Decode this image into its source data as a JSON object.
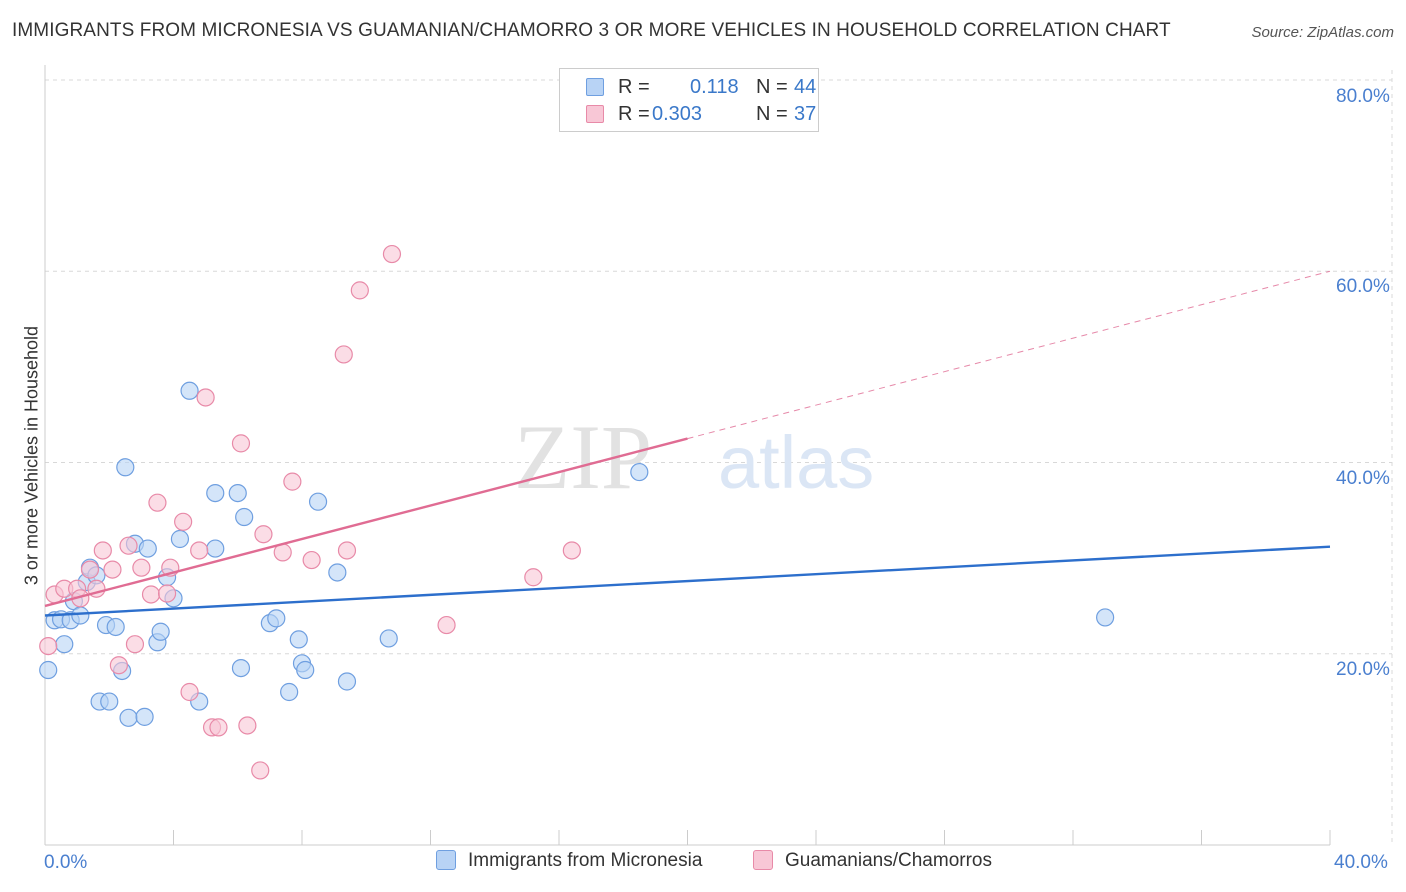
{
  "title": "IMMIGRANTS FROM MICRONESIA VS GUAMANIAN/CHAMORRO 3 OR MORE VEHICLES IN HOUSEHOLD CORRELATION CHART",
  "source": "Source: ZipAtlas.com",
  "watermark": {
    "zip": "ZIP",
    "atlas": "atlas"
  },
  "legend": {
    "rows": [
      {
        "r_label": "R =",
        "r_value": "0.118",
        "n_label": "N =",
        "n_value": "44",
        "color": "#b8d3f5",
        "border": "#6f9fe0"
      },
      {
        "r_label": "R =",
        "r_value": "0.303",
        "n_label": "N =",
        "n_value": "37",
        "color": "#f8c7d6",
        "border": "#e88aa8"
      }
    ]
  },
  "bottom_legend": [
    {
      "label": "Immigrants from Micronesia",
      "color": "#b8d3f5",
      "border": "#6f9fe0"
    },
    {
      "label": "Guamanians/Chamorros",
      "color": "#f8c7d6",
      "border": "#e88aa8"
    }
  ],
  "chart_data": {
    "type": "scatter",
    "title": "IMMIGRANTS FROM MICRONESIA VS GUAMANIAN/CHAMORRO 3 OR MORE VEHICLES IN HOUSEHOLD CORRELATION CHART",
    "xlabel": "",
    "ylabel": "3 or more Vehicles in Household",
    "xlim": [
      0,
      40
    ],
    "ylim": [
      0,
      80
    ],
    "x_tick_labels": [
      "0.0%",
      "40.0%"
    ],
    "y_ticks": [
      20,
      40,
      60,
      80
    ],
    "y_tick_labels": [
      "20.0%",
      "40.0%",
      "60.0%",
      "80.0%"
    ],
    "grid": true,
    "series": [
      {
        "name": "Immigrants from Micronesia",
        "color": "#6f9fe0",
        "fill": "#b8d3f5",
        "trend": {
          "x": [
            0,
            40
          ],
          "y": [
            24.0,
            31.2
          ],
          "color": "#2d6fcc"
        },
        "points": [
          [
            0.1,
            18.3
          ],
          [
            0.3,
            23.5
          ],
          [
            0.5,
            23.6
          ],
          [
            0.6,
            21.0
          ],
          [
            0.8,
            23.5
          ],
          [
            0.9,
            25.5
          ],
          [
            1.1,
            24.0
          ],
          [
            1.3,
            27.5
          ],
          [
            1.4,
            29.0
          ],
          [
            1.6,
            28.2
          ],
          [
            1.7,
            15.0
          ],
          [
            1.9,
            23.0
          ],
          [
            2.0,
            15.0
          ],
          [
            2.2,
            22.8
          ],
          [
            2.4,
            18.2
          ],
          [
            2.5,
            39.5
          ],
          [
            2.6,
            13.3
          ],
          [
            2.8,
            31.5
          ],
          [
            3.1,
            13.4
          ],
          [
            3.2,
            31.0
          ],
          [
            3.5,
            21.2
          ],
          [
            3.6,
            22.3
          ],
          [
            3.8,
            28.0
          ],
          [
            4.0,
            25.8
          ],
          [
            4.2,
            32.0
          ],
          [
            4.5,
            47.5
          ],
          [
            4.8,
            15.0
          ],
          [
            5.3,
            36.8
          ],
          [
            5.3,
            31.0
          ],
          [
            6.1,
            18.5
          ],
          [
            6.0,
            36.8
          ],
          [
            6.2,
            34.3
          ],
          [
            7.0,
            23.2
          ],
          [
            7.2,
            23.7
          ],
          [
            7.6,
            16.0
          ],
          [
            7.9,
            21.5
          ],
          [
            8.0,
            19.0
          ],
          [
            8.1,
            18.3
          ],
          [
            8.5,
            35.9
          ],
          [
            9.1,
            28.5
          ],
          [
            9.4,
            17.1
          ],
          [
            10.7,
            21.6
          ],
          [
            18.5,
            39.0
          ],
          [
            33.0,
            23.8
          ]
        ]
      },
      {
        "name": "Guamanians/Chamorros",
        "color": "#e88aa8",
        "fill": "#f8c7d6",
        "trend": {
          "x": [
            0,
            20
          ],
          "y": [
            25.0,
            42.5
          ],
          "color": "#e06c93",
          "dashed_to": [
            40,
            60.0
          ]
        },
        "points": [
          [
            0.1,
            20.8
          ],
          [
            0.3,
            26.2
          ],
          [
            0.6,
            26.8
          ],
          [
            1.0,
            26.8
          ],
          [
            1.1,
            25.8
          ],
          [
            1.4,
            28.8
          ],
          [
            1.6,
            26.8
          ],
          [
            1.8,
            30.8
          ],
          [
            2.1,
            28.8
          ],
          [
            2.3,
            18.8
          ],
          [
            2.6,
            31.3
          ],
          [
            2.8,
            21.0
          ],
          [
            3.0,
            29.0
          ],
          [
            3.3,
            26.2
          ],
          [
            3.5,
            35.8
          ],
          [
            3.8,
            26.3
          ],
          [
            3.9,
            29.0
          ],
          [
            4.3,
            33.8
          ],
          [
            4.5,
            16.0
          ],
          [
            4.8,
            30.8
          ],
          [
            5.0,
            46.8
          ],
          [
            5.2,
            12.3
          ],
          [
            5.4,
            12.3
          ],
          [
            6.1,
            42.0
          ],
          [
            6.3,
            12.5
          ],
          [
            6.7,
            7.8
          ],
          [
            6.8,
            32.5
          ],
          [
            7.4,
            30.6
          ],
          [
            7.7,
            38.0
          ],
          [
            8.3,
            29.8
          ],
          [
            9.4,
            30.8
          ],
          [
            9.3,
            51.3
          ],
          [
            9.8,
            58.0
          ],
          [
            10.8,
            61.8
          ],
          [
            12.5,
            23.0
          ],
          [
            15.2,
            28.0
          ],
          [
            16.4,
            30.8
          ]
        ]
      }
    ]
  }
}
